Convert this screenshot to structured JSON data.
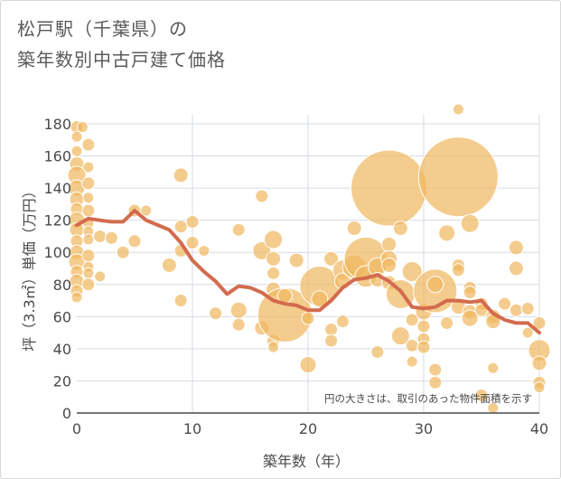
{
  "title": {
    "line1": "松戸駅（千葉県）の",
    "line2": "築年数別中古戸建て価格"
  },
  "chart_data": {
    "type": "scatter",
    "xlabel": "築年数（年）",
    "ylabel": "坪（3.3㎡）単価（万円）",
    "xlim": [
      0,
      40
    ],
    "ylim": [
      0,
      180
    ],
    "xticks": [
      0,
      10,
      20,
      30,
      40
    ],
    "yticks": [
      0,
      20,
      40,
      60,
      80,
      100,
      120,
      140,
      160,
      180
    ],
    "grid": true,
    "note": "円の大きさは、取引のあった物件面積を示す",
    "colors": {
      "bubble": "#f0b861",
      "bubble_stroke": "#ffffff",
      "line": "#d36b4e",
      "grid": "#d5dbe2",
      "axis": "#4a4a4a"
    },
    "points": [
      {
        "x": 0,
        "y": 178,
        "s": 7
      },
      {
        "x": 0,
        "y": 172,
        "s": 6
      },
      {
        "x": 0,
        "y": 163,
        "s": 6
      },
      {
        "x": 0,
        "y": 155,
        "s": 8
      },
      {
        "x": 0,
        "y": 148,
        "s": 10
      },
      {
        "x": 0,
        "y": 140,
        "s": 9
      },
      {
        "x": 0,
        "y": 133,
        "s": 8
      },
      {
        "x": 0,
        "y": 127,
        "s": 7
      },
      {
        "x": 0,
        "y": 120,
        "s": 9
      },
      {
        "x": 0,
        "y": 114,
        "s": 8
      },
      {
        "x": 0,
        "y": 107,
        "s": 7
      },
      {
        "x": 0,
        "y": 100,
        "s": 8
      },
      {
        "x": 0,
        "y": 94,
        "s": 9
      },
      {
        "x": 0,
        "y": 88,
        "s": 7
      },
      {
        "x": 0,
        "y": 82,
        "s": 8
      },
      {
        "x": 0,
        "y": 76,
        "s": 7
      },
      {
        "x": 0,
        "y": 72,
        "s": 6
      },
      {
        "x": 0.5,
        "y": 178,
        "s": 6
      },
      {
        "x": 1,
        "y": 167,
        "s": 7
      },
      {
        "x": 1,
        "y": 153,
        "s": 6
      },
      {
        "x": 1,
        "y": 143,
        "s": 7
      },
      {
        "x": 1,
        "y": 134,
        "s": 6
      },
      {
        "x": 1,
        "y": 126,
        "s": 7
      },
      {
        "x": 1,
        "y": 118,
        "s": 6
      },
      {
        "x": 1,
        "y": 113,
        "s": 6
      },
      {
        "x": 1,
        "y": 108,
        "s": 6
      },
      {
        "x": 1,
        "y": 98,
        "s": 7
      },
      {
        "x": 1,
        "y": 91,
        "s": 6
      },
      {
        "x": 1,
        "y": 87,
        "s": 6
      },
      {
        "x": 1,
        "y": 80,
        "s": 7
      },
      {
        "x": 2,
        "y": 110,
        "s": 7
      },
      {
        "x": 2,
        "y": 85,
        "s": 6
      },
      {
        "x": 3,
        "y": 109,
        "s": 7
      },
      {
        "x": 4,
        "y": 100,
        "s": 7
      },
      {
        "x": 5,
        "y": 126,
        "s": 7
      },
      {
        "x": 5,
        "y": 107,
        "s": 7
      },
      {
        "x": 6,
        "y": 126,
        "s": 6
      },
      {
        "x": 8,
        "y": 92,
        "s": 8
      },
      {
        "x": 9,
        "y": 148,
        "s": 8
      },
      {
        "x": 9,
        "y": 116,
        "s": 7
      },
      {
        "x": 9,
        "y": 101,
        "s": 7
      },
      {
        "x": 9,
        "y": 70,
        "s": 7
      },
      {
        "x": 10,
        "y": 119,
        "s": 7
      },
      {
        "x": 10,
        "y": 106,
        "s": 7
      },
      {
        "x": 11,
        "y": 101,
        "s": 6
      },
      {
        "x": 12,
        "y": 62,
        "s": 7
      },
      {
        "x": 14,
        "y": 114,
        "s": 7
      },
      {
        "x": 14,
        "y": 64,
        "s": 9
      },
      {
        "x": 14,
        "y": 55,
        "s": 7
      },
      {
        "x": 16,
        "y": 135,
        "s": 7
      },
      {
        "x": 16,
        "y": 101,
        "s": 10
      },
      {
        "x": 16,
        "y": 53,
        "s": 8
      },
      {
        "x": 17,
        "y": 108,
        "s": 10
      },
      {
        "x": 17,
        "y": 96,
        "s": 8
      },
      {
        "x": 17,
        "y": 87,
        "s": 7
      },
      {
        "x": 17,
        "y": 77,
        "s": 8
      },
      {
        "x": 17,
        "y": 45,
        "s": 7
      },
      {
        "x": 17,
        "y": 41,
        "s": 6
      },
      {
        "x": 18,
        "y": 61,
        "s": 30
      },
      {
        "x": 18,
        "y": 73,
        "s": 8
      },
      {
        "x": 19,
        "y": 95,
        "s": 8
      },
      {
        "x": 20,
        "y": 30,
        "s": 9
      },
      {
        "x": 20,
        "y": 59,
        "s": 7
      },
      {
        "x": 21,
        "y": 79,
        "s": 22
      },
      {
        "x": 21,
        "y": 71,
        "s": 9
      },
      {
        "x": 22,
        "y": 96,
        "s": 8
      },
      {
        "x": 22,
        "y": 52,
        "s": 7
      },
      {
        "x": 22,
        "y": 45,
        "s": 7
      },
      {
        "x": 23,
        "y": 89,
        "s": 11
      },
      {
        "x": 23,
        "y": 82,
        "s": 9
      },
      {
        "x": 23,
        "y": 57,
        "s": 7
      },
      {
        "x": 24,
        "y": 91,
        "s": 13
      },
      {
        "x": 24,
        "y": 115,
        "s": 8
      },
      {
        "x": 25,
        "y": 96,
        "s": 24
      },
      {
        "x": 25,
        "y": 85,
        "s": 12
      },
      {
        "x": 26,
        "y": 91,
        "s": 10
      },
      {
        "x": 26,
        "y": 83,
        "s": 8
      },
      {
        "x": 26,
        "y": 38,
        "s": 7
      },
      {
        "x": 27,
        "y": 140,
        "s": 42
      },
      {
        "x": 27,
        "y": 105,
        "s": 8
      },
      {
        "x": 27,
        "y": 96,
        "s": 9
      },
      {
        "x": 27,
        "y": 92,
        "s": 8
      },
      {
        "x": 27,
        "y": 81,
        "s": 8
      },
      {
        "x": 28,
        "y": 115,
        "s": 8
      },
      {
        "x": 28,
        "y": 74,
        "s": 16
      },
      {
        "x": 28,
        "y": 48,
        "s": 10
      },
      {
        "x": 29,
        "y": 88,
        "s": 11
      },
      {
        "x": 29,
        "y": 58,
        "s": 7
      },
      {
        "x": 29,
        "y": 42,
        "s": 7
      },
      {
        "x": 29,
        "y": 32,
        "s": 6
      },
      {
        "x": 30,
        "y": 63,
        "s": 9
      },
      {
        "x": 30,
        "y": 54,
        "s": 7
      },
      {
        "x": 30,
        "y": 46,
        "s": 7
      },
      {
        "x": 30,
        "y": 41,
        "s": 7
      },
      {
        "x": 31,
        "y": 76,
        "s": 24
      },
      {
        "x": 31,
        "y": 80,
        "s": 9
      },
      {
        "x": 31,
        "y": 27,
        "s": 7
      },
      {
        "x": 31,
        "y": 19,
        "s": 7
      },
      {
        "x": 32,
        "y": 112,
        "s": 9
      },
      {
        "x": 32,
        "y": 56,
        "s": 7
      },
      {
        "x": 33,
        "y": 147,
        "s": 44
      },
      {
        "x": 33,
        "y": 189,
        "s": 6
      },
      {
        "x": 33,
        "y": 92,
        "s": 7
      },
      {
        "x": 33,
        "y": 89,
        "s": 7
      },
      {
        "x": 33,
        "y": 66,
        "s": 8
      },
      {
        "x": 34,
        "y": 118,
        "s": 10
      },
      {
        "x": 34,
        "y": 78,
        "s": 7
      },
      {
        "x": 34,
        "y": 75,
        "s": 7
      },
      {
        "x": 34,
        "y": 63,
        "s": 8
      },
      {
        "x": 34,
        "y": 59,
        "s": 9
      },
      {
        "x": 35,
        "y": 68,
        "s": 7
      },
      {
        "x": 35,
        "y": 64,
        "s": 7
      },
      {
        "x": 35,
        "y": 11,
        "s": 7
      },
      {
        "x": 36,
        "y": 60,
        "s": 8
      },
      {
        "x": 36,
        "y": 57,
        "s": 8
      },
      {
        "x": 36,
        "y": 28,
        "s": 6
      },
      {
        "x": 36,
        "y": 3,
        "s": 6
      },
      {
        "x": 37,
        "y": 68,
        "s": 7
      },
      {
        "x": 38,
        "y": 103,
        "s": 8
      },
      {
        "x": 38,
        "y": 90,
        "s": 8
      },
      {
        "x": 38,
        "y": 64,
        "s": 7
      },
      {
        "x": 39,
        "y": 65,
        "s": 7
      },
      {
        "x": 39,
        "y": 50,
        "s": 6
      },
      {
        "x": 40,
        "y": 39,
        "s": 12
      },
      {
        "x": 40,
        "y": 56,
        "s": 7
      },
      {
        "x": 40,
        "y": 31,
        "s": 8
      },
      {
        "x": 40,
        "y": 19,
        "s": 7
      },
      {
        "x": 40,
        "y": 16,
        "s": 6
      }
    ],
    "trend": [
      [
        0,
        117
      ],
      [
        1,
        121
      ],
      [
        2,
        120
      ],
      [
        3,
        119
      ],
      [
        4,
        119
      ],
      [
        5,
        126
      ],
      [
        6,
        120
      ],
      [
        7,
        117
      ],
      [
        8,
        114
      ],
      [
        9,
        106
      ],
      [
        10,
        95
      ],
      [
        11,
        88
      ],
      [
        12,
        82
      ],
      [
        13,
        74
      ],
      [
        14,
        79
      ],
      [
        15,
        78
      ],
      [
        16,
        75
      ],
      [
        17,
        70
      ],
      [
        18,
        68
      ],
      [
        19,
        67
      ],
      [
        20,
        64
      ],
      [
        21,
        64
      ],
      [
        22,
        70
      ],
      [
        23,
        78
      ],
      [
        24,
        83
      ],
      [
        25,
        84
      ],
      [
        26,
        86
      ],
      [
        27,
        82
      ],
      [
        28,
        76
      ],
      [
        29,
        66
      ],
      [
        30,
        65
      ],
      [
        31,
        66
      ],
      [
        32,
        70
      ],
      [
        33,
        70
      ],
      [
        34,
        69
      ],
      [
        35,
        70
      ],
      [
        36,
        62
      ],
      [
        37,
        58
      ],
      [
        38,
        56
      ],
      [
        39,
        56
      ],
      [
        40,
        50
      ]
    ]
  }
}
